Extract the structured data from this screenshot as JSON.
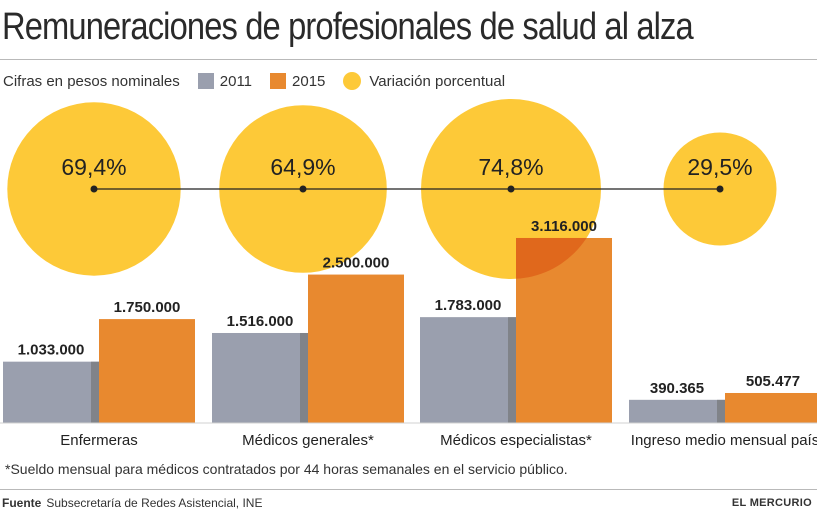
{
  "title": "Remuneraciones de profesionales de salud al alza",
  "subtitle": "Cifras en pesos nominales",
  "legend": {
    "series_2011": "2011",
    "series_2015": "2015",
    "variation": "Variación porcentual"
  },
  "colors": {
    "series_2011": "#9a9fae",
    "series_2015": "#e8892f",
    "variation": "#fdc938",
    "overlap": "#e0681c",
    "axis": "#222222"
  },
  "footnote": "*Sueldo mensual para médicos contratados por 44 horas semanales en el servicio público.",
  "source_label": "Fuente",
  "source_text": "Subsecretaría de Redes Asistencial, INE",
  "brand": "EL MERCURIO",
  "chart_data": {
    "type": "bar",
    "categories": [
      "Enfermeras",
      "Médicos generales*",
      "Médicos especialistas*",
      "Ingreso medio mensual país"
    ],
    "series": [
      {
        "name": "2011",
        "values": [
          1033000,
          1516000,
          1783000,
          390365
        ],
        "labels": [
          "1.033.000",
          "1.516.000",
          "1.783.000",
          "390.365"
        ]
      },
      {
        "name": "2015",
        "values": [
          1750000,
          2500000,
          3116000,
          505477
        ],
        "labels": [
          "1.750.000",
          "2.500.000",
          "3.116.000",
          "505.477"
        ]
      }
    ],
    "variation": {
      "name": "Variación porcentual",
      "values": [
        69.4,
        64.9,
        74.8,
        29.5
      ],
      "labels": [
        "69,4%",
        "64,9%",
        "74,8%",
        "29,5%"
      ]
    },
    "ylim": [
      0,
      3200000
    ]
  }
}
